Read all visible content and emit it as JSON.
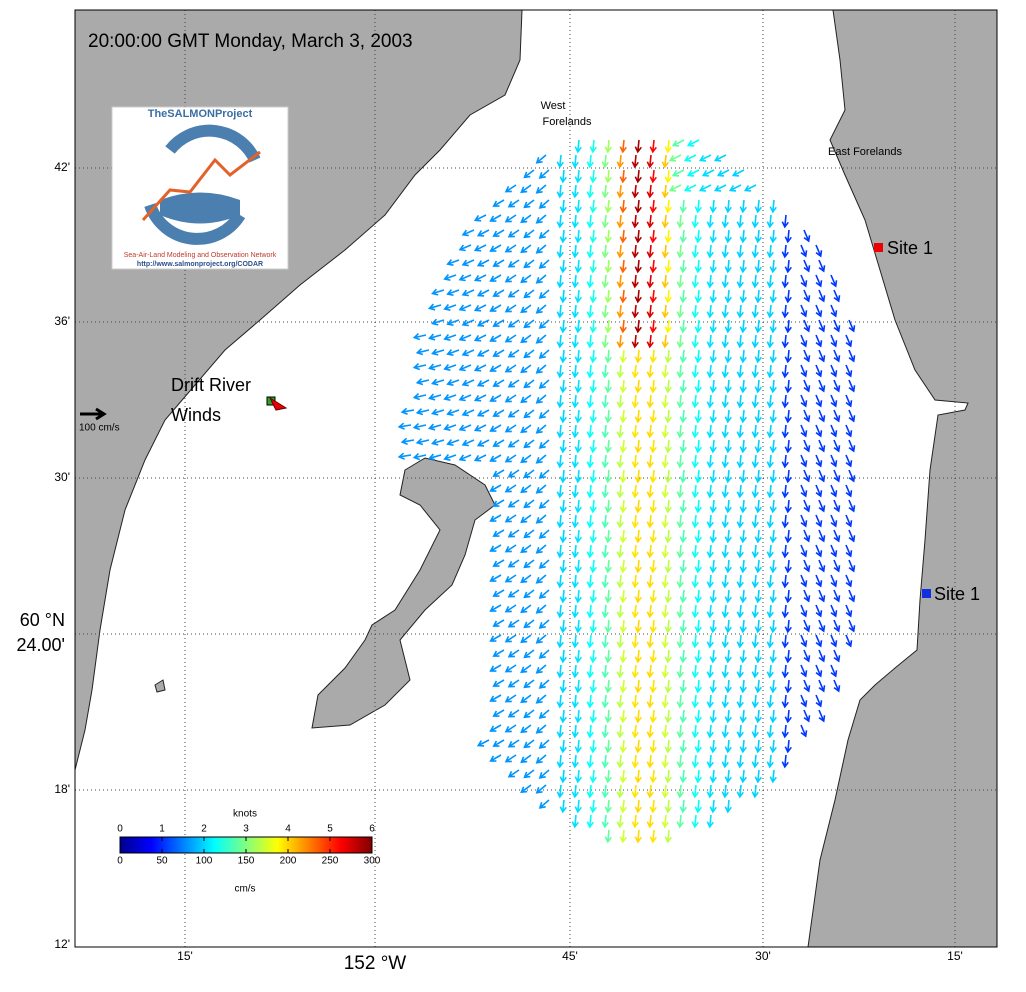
{
  "header": {
    "title": "20:00:00 GMT Monday, March 3, 2003"
  },
  "logo": {
    "name": "TheSALMONProject",
    "network": "Sea-Air-Land Modeling and Observation Network",
    "url": "http://www.salmonproject.org/CODAR"
  },
  "places": {
    "west_forelands": [
      "West",
      "Forelands"
    ],
    "east_forelands": "East Forelands",
    "site_north": "Site 1",
    "site_south": "Site 1",
    "drift_river": [
      "Drift River",
      "Winds"
    ]
  },
  "scale_arrow": {
    "label": "100 cm/s"
  },
  "lat_labels": [
    "42'",
    "36'",
    "30'",
    "60 °N",
    "24.00'",
    "18'",
    "12'"
  ],
  "lon_labels": [
    "15'",
    "152 °W",
    "45'",
    "30'",
    "15'"
  ],
  "colorbar": {
    "title": "knots",
    "knots_ticks": [
      0,
      1,
      2,
      3,
      4,
      5,
      6
    ],
    "cms_ticks": [
      0,
      50,
      100,
      150,
      200,
      250,
      300
    ],
    "units": "cm/s",
    "colormap": [
      "#00008f",
      "#0000ff",
      "#0080ff",
      "#00ffff",
      "#80ff80",
      "#ffff00",
      "#ff8000",
      "#ff0000",
      "#800000"
    ]
  }
}
